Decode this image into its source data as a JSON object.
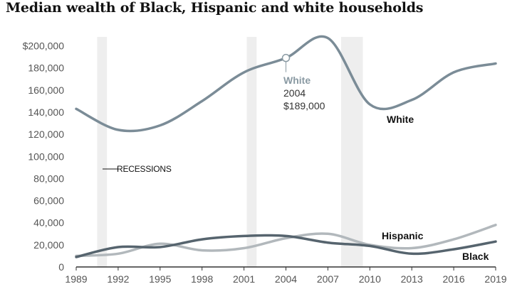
{
  "chart_data": {
    "type": "line",
    "title": "Median wealth of Black, Hispanic and white households",
    "xlabel": "",
    "ylabel": "",
    "ylim": [
      0,
      200000
    ],
    "y_ticks": [
      {
        "value": 0,
        "label": "0"
      },
      {
        "value": 20000,
        "label": "20,000"
      },
      {
        "value": 40000,
        "label": "40,000"
      },
      {
        "value": 60000,
        "label": "60,000"
      },
      {
        "value": 80000,
        "label": "80,000"
      },
      {
        "value": 100000,
        "label": "100,000"
      },
      {
        "value": 120000,
        "label": "120,000"
      },
      {
        "value": 140000,
        "label": "140,000"
      },
      {
        "value": 160000,
        "label": "160,000"
      },
      {
        "value": 180000,
        "label": "180,000"
      },
      {
        "value": 200000,
        "label": "$200,000"
      }
    ],
    "x": [
      1989,
      1992,
      1995,
      1998,
      2001,
      2004,
      2007,
      2010,
      2013,
      2016,
      2019
    ],
    "x_tick_labels": [
      "1989",
      "1992",
      "1995",
      "1998",
      "2001",
      "2004",
      "2007",
      "2010",
      "2013",
      "2016",
      "2019"
    ],
    "series": [
      {
        "name": "White",
        "values": [
          143000,
          124000,
          128000,
          150000,
          176000,
          189000,
          207000,
          147000,
          151000,
          176000,
          184000
        ],
        "color": "#7b8c97"
      },
      {
        "name": "Hispanic",
        "values": [
          10000,
          12000,
          21000,
          15000,
          17000,
          26000,
          30000,
          20000,
          17000,
          25000,
          38000
        ],
        "color": "#b2b8bc"
      },
      {
        "name": "Black",
        "values": [
          9000,
          18000,
          18000,
          25000,
          28000,
          28000,
          22000,
          19000,
          12000,
          16000,
          23000
        ],
        "color": "#56646e"
      }
    ],
    "recessions": [
      [
        1990.5,
        1991.2
      ],
      [
        2001.2,
        2001.9
      ],
      [
        2007.95,
        2009.5
      ]
    ],
    "recessions_label": "RECESSIONS",
    "annotation": {
      "series": "White",
      "year_label": "2004",
      "value_label": "$189,000",
      "x": 2004,
      "y": 189000
    },
    "series_labels": {
      "white": "White",
      "hispanic": "Hispanic",
      "black": "Black"
    },
    "grid": false,
    "legend": "none"
  },
  "colors": {
    "recession_band": "#eeeeee",
    "axis": "#333333"
  }
}
